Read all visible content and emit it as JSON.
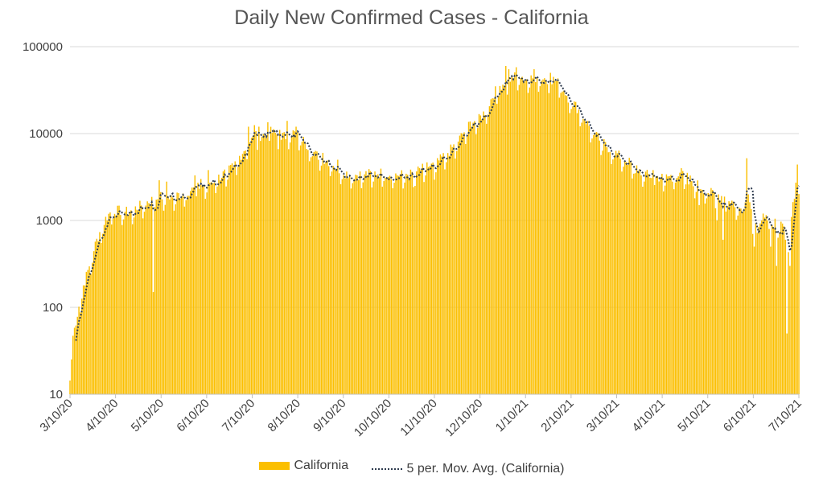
{
  "chart_data": {
    "type": "bar",
    "title": "Daily New Confirmed Cases - California",
    "xlabel": "",
    "ylabel": "",
    "yscale": "log",
    "ylim": [
      10,
      100000
    ],
    "y_ticks": [
      "10",
      "100",
      "1000",
      "10000",
      "100000"
    ],
    "x_tick_labels": [
      "3/10/20",
      "4/10/20",
      "5/10/20",
      "6/10/20",
      "7/10/20",
      "8/10/20",
      "9/10/20",
      "10/10/20",
      "11/10/20",
      "12/10/20",
      "1/10/21",
      "2/10/21",
      "3/10/21",
      "4/10/21",
      "5/10/21",
      "6/10/21",
      "7/10/21"
    ],
    "x_range_days": [
      0,
      490
    ],
    "series": [
      {
        "name": "California",
        "kind": "bar",
        "color": "#fbbf00",
        "keypoints": [
          [
            0,
            20
          ],
          [
            2,
            45
          ],
          [
            5,
            80
          ],
          [
            8,
            150
          ],
          [
            12,
            250
          ],
          [
            16,
            450
          ],
          [
            20,
            700
          ],
          [
            24,
            1000
          ],
          [
            28,
            1250
          ],
          [
            32,
            1250
          ],
          [
            40,
            1200
          ],
          [
            45,
            1350
          ],
          [
            50,
            1500
          ],
          [
            55,
            1650
          ],
          [
            61,
            1800
          ],
          [
            70,
            1800
          ],
          [
            80,
            2100
          ],
          [
            92,
            2500
          ],
          [
            100,
            3000
          ],
          [
            108,
            3700
          ],
          [
            115,
            5500
          ],
          [
            120,
            7500
          ],
          [
            125,
            9000
          ],
          [
            130,
            9200
          ],
          [
            135,
            10000
          ],
          [
            140,
            9200
          ],
          [
            145,
            8800
          ],
          [
            150,
            9800
          ],
          [
            155,
            8700
          ],
          [
            160,
            7000
          ],
          [
            165,
            5500
          ],
          [
            170,
            5000
          ],
          [
            175,
            4500
          ],
          [
            180,
            3800
          ],
          [
            185,
            3400
          ],
          [
            190,
            3200
          ],
          [
            200,
            3300
          ],
          [
            210,
            3400
          ],
          [
            220,
            3200
          ],
          [
            230,
            3300
          ],
          [
            240,
            4000
          ],
          [
            245,
            4100
          ],
          [
            250,
            5000
          ],
          [
            255,
            6000
          ],
          [
            260,
            7500
          ],
          [
            265,
            10000
          ],
          [
            270,
            13000
          ],
          [
            275,
            14000
          ],
          [
            280,
            18000
          ],
          [
            285,
            28000
          ],
          [
            290,
            35000
          ],
          [
            295,
            40000
          ],
          [
            300,
            44000
          ],
          [
            305,
            42000
          ],
          [
            310,
            40000
          ],
          [
            315,
            42000
          ],
          [
            320,
            41000
          ],
          [
            325,
            40000
          ],
          [
            330,
            35000
          ],
          [
            335,
            25000
          ],
          [
            340,
            20000
          ],
          [
            345,
            15000
          ],
          [
            350,
            11000
          ],
          [
            355,
            8500
          ],
          [
            360,
            7000
          ],
          [
            365,
            6000
          ],
          [
            370,
            5200
          ],
          [
            375,
            4600
          ],
          [
            380,
            4000
          ],
          [
            385,
            3400
          ],
          [
            390,
            3100
          ],
          [
            395,
            3000
          ],
          [
            400,
            3000
          ],
          [
            405,
            3100
          ],
          [
            410,
            3500
          ],
          [
            415,
            3000
          ],
          [
            420,
            2600
          ],
          [
            425,
            2300
          ],
          [
            430,
            2000
          ],
          [
            435,
            1900
          ],
          [
            440,
            1800
          ],
          [
            445,
            1600
          ],
          [
            450,
            1300
          ],
          [
            452,
            1200
          ],
          [
            455,
            2200
          ],
          [
            458,
            1300
          ],
          [
            460,
            1000
          ],
          [
            465,
            1000
          ],
          [
            470,
            950
          ],
          [
            475,
            900
          ],
          [
            480,
            800
          ],
          [
            483,
            600
          ],
          [
            486,
            1500
          ],
          [
            488,
            2500
          ],
          [
            490,
            2800
          ]
        ],
        "spikes": [
          [
            56,
            150
          ],
          [
            60,
            2900
          ],
          [
            65,
            2800
          ],
          [
            84,
            3300
          ],
          [
            88,
            3000
          ],
          [
            93,
            3800
          ],
          [
            110,
            4100
          ],
          [
            120,
            12000
          ],
          [
            124,
            12500
          ],
          [
            127,
            12000
          ],
          [
            133,
            13500
          ],
          [
            141,
            11000
          ],
          [
            146,
            14000
          ],
          [
            152,
            12000
          ],
          [
            158,
            8000
          ],
          [
            170,
            6000
          ],
          [
            180,
            5000
          ],
          [
            232,
            2500
          ],
          [
            286,
            35000
          ],
          [
            293,
            60000
          ],
          [
            295,
            55000
          ],
          [
            300,
            58000
          ],
          [
            304,
            45000
          ],
          [
            312,
            55000
          ],
          [
            318,
            42000
          ],
          [
            323,
            50000
          ],
          [
            380,
            3500
          ],
          [
            392,
            3800
          ],
          [
            405,
            2800
          ],
          [
            416,
            2600
          ],
          [
            420,
            1800
          ],
          [
            423,
            1500
          ],
          [
            428,
            1800
          ],
          [
            435,
            1000
          ],
          [
            439,
            600
          ],
          [
            455,
            5200
          ],
          [
            456,
            2000
          ],
          [
            459,
            700
          ],
          [
            460,
            500
          ],
          [
            465,
            1000
          ],
          [
            466,
            1200
          ],
          [
            469,
            1000
          ],
          [
            471,
            500
          ],
          [
            475,
            300
          ],
          [
            481,
            600
          ],
          [
            482,
            50
          ],
          [
            484,
            300
          ],
          [
            489,
            4400
          ]
        ]
      },
      {
        "name": "5 per. Mov. Avg. (California)",
        "kind": "line",
        "color": "#2e3b4e"
      }
    ],
    "legend_position": "bottom",
    "grid": "horizontal"
  }
}
